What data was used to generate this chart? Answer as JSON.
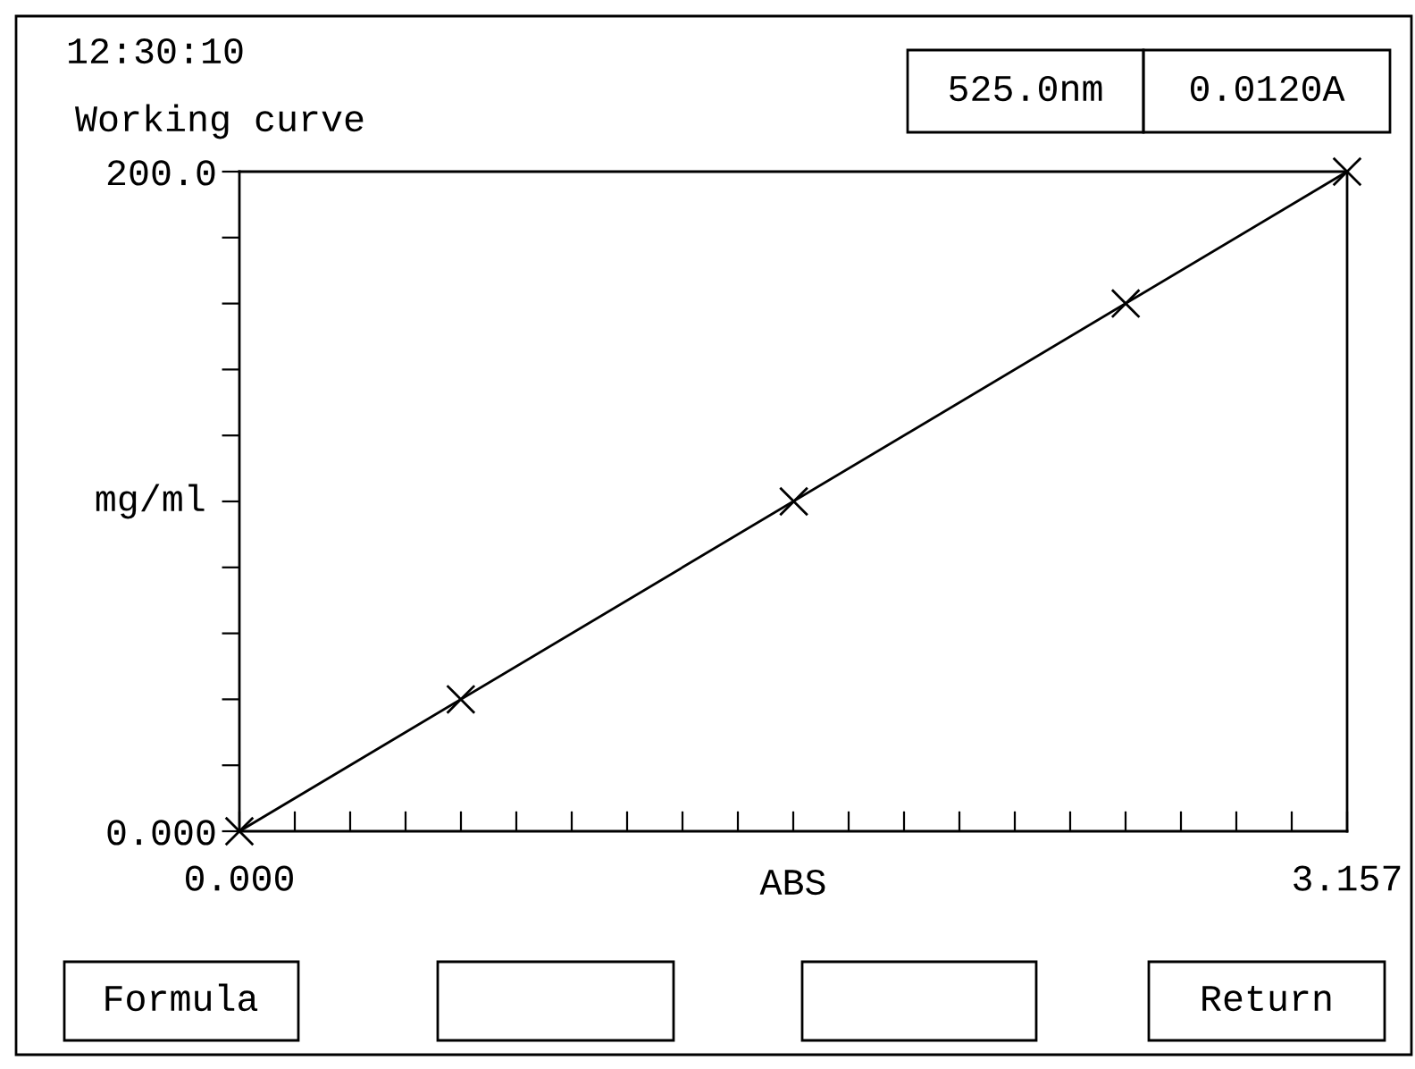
{
  "chart_data": {
    "type": "scatter",
    "xlabel": "ABS",
    "ylabel": "mg/ml",
    "xlim": [
      0,
      3.157
    ],
    "ylim": [
      0,
      200
    ],
    "xticks": [
      {
        "value": 0,
        "label": "0.000"
      },
      {
        "value": 0.15785,
        "label": null
      },
      {
        "value": 0.3157,
        "label": null
      },
      {
        "value": 0.47355,
        "label": null
      },
      {
        "value": 0.6314,
        "label": null
      },
      {
        "value": 0.78925,
        "label": null
      },
      {
        "value": 0.9471,
        "label": null
      },
      {
        "value": 1.10495,
        "label": null
      },
      {
        "value": 1.2628,
        "label": null
      },
      {
        "value": 1.42065,
        "label": null
      },
      {
        "value": 1.5785,
        "label": null
      },
      {
        "value": 1.73635,
        "label": null
      },
      {
        "value": 1.8942,
        "label": null
      },
      {
        "value": 2.05205,
        "label": null
      },
      {
        "value": 2.2099,
        "label": null
      },
      {
        "value": 2.36775,
        "label": null
      },
      {
        "value": 2.5256,
        "label": null
      },
      {
        "value": 2.68345,
        "label": null
      },
      {
        "value": 2.8413,
        "label": null
      },
      {
        "value": 2.99915,
        "label": null
      },
      {
        "value": 3.157,
        "label": "3.157"
      }
    ],
    "yticks": [
      {
        "value": 0,
        "label": "0.000"
      },
      {
        "value": 20,
        "label": null
      },
      {
        "value": 40,
        "label": null
      },
      {
        "value": 60,
        "label": null
      },
      {
        "value": 80,
        "label": null
      },
      {
        "value": 100,
        "label": null
      },
      {
        "value": 120,
        "label": null
      },
      {
        "value": 140,
        "label": null
      },
      {
        "value": 160,
        "label": null
      },
      {
        "value": 180,
        "label": null
      },
      {
        "value": 200,
        "label": "200.0"
      }
    ],
    "grid": false,
    "marker": "cross",
    "series": [
      {
        "color": "#000000",
        "x": [
          0,
          0.631,
          1.58,
          2.526,
          3.157
        ],
        "values": [
          0,
          40,
          100,
          160,
          200
        ]
      },
      {
        "type": "line",
        "color": "#000000",
        "line_style": "solid",
        "marker": "none",
        "x": [
          0,
          3.157
        ],
        "values": [
          0,
          200
        ]
      }
    ],
    "annotations": [
      "12:30:10",
      "Working curve",
      "525.0nm",
      "0.0120A",
      "Formula",
      "Return"
    ]
  }
}
